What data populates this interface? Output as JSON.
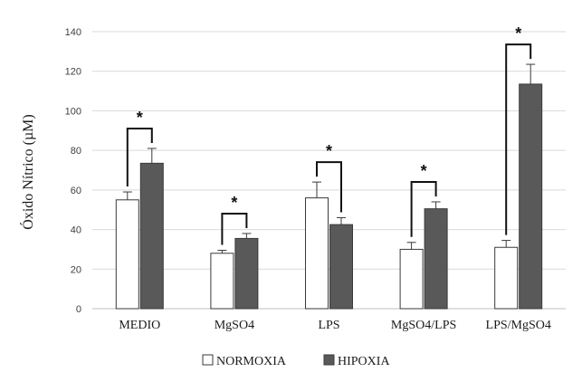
{
  "chart_data": {
    "type": "bar",
    "categories": [
      "MEDIO",
      "MgSO4",
      "LPS",
      "MgSO4/LPS",
      "LPS/MgSO4"
    ],
    "series": [
      {
        "name": "NORMOXIA",
        "values": [
          55,
          28,
          56,
          30,
          31
        ],
        "errors": [
          4,
          1.5,
          8,
          3.5,
          3.5
        ],
        "color": "#ffffff"
      },
      {
        "name": "HIPOXIA",
        "values": [
          73.5,
          35.5,
          42.5,
          50.5,
          113.5
        ],
        "errors": [
          7.5,
          2.5,
          3.5,
          3.5,
          10
        ],
        "color": "#595959"
      }
    ],
    "ylabel": "Óxido Nítrico (µM)",
    "ylim": [
      0,
      140
    ],
    "yticks": [
      "0",
      "20",
      "40",
      "60",
      "80",
      "100",
      "120",
      "140"
    ],
    "grid": true,
    "legend_position": "bottom",
    "significance": [
      "*",
      "*",
      "*",
      "*",
      "*"
    ]
  }
}
